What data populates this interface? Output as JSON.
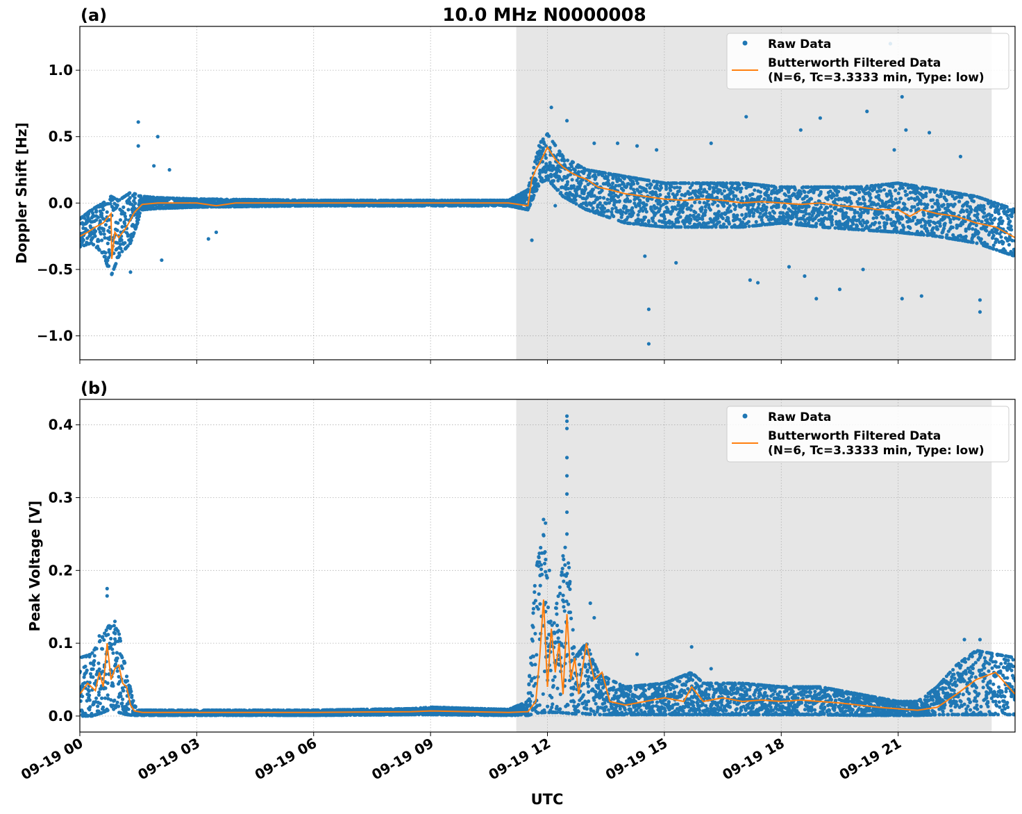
{
  "figure": {
    "title": "10.0 MHz N0000008",
    "xlabel": "UTC",
    "xticks": [
      "09-19 00",
      "09-19 03",
      "09-19 06",
      "09-19 09",
      "09-19 12",
      "09-19 15",
      "09-19 18",
      "09-19 21"
    ]
  },
  "colors": {
    "raw": "#1f77b4",
    "filtered": "#ff7f0e",
    "shade": "#e6e6e6",
    "grid": "#b0b0b0"
  },
  "legend": {
    "raw_label": "Raw Data",
    "filtered_label_1": "Butterworth Filtered Data",
    "filtered_label_2": "(N=6, Tc=3.3333 min, Type: low)"
  },
  "chart_data": [
    {
      "type": "scatter",
      "panel_label": "(a)",
      "ylabel": "Doppler Shift [Hz]",
      "x_unit": "hours UTC on 09-19",
      "xlim": [
        0,
        24
      ],
      "ylim": [
        -1.18,
        1.33
      ],
      "yticks": [
        1.0,
        0.5,
        0.0,
        -0.5,
        -1.0
      ],
      "ytick_labels": [
        "1.0",
        "0.5",
        "0.0",
        "−1.0"
      ],
      "ytick_labels_full": [
        "1.0",
        "0.5",
        "0.0",
        "−0.5",
        "−1.0"
      ],
      "shaded_range": [
        11.2,
        23.4
      ],
      "legend_position": "top-right",
      "series": [
        {
          "name": "Raw Data",
          "style": "points",
          "envelope": {
            "x": [
              0,
              0.3,
              0.6,
              0.8,
              1.0,
              1.3,
              1.6,
              2.0,
              3.0,
              6.0,
              9.0,
              11.0,
              11.5,
              11.8,
              12.0,
              12.4,
              13.0,
              14.0,
              15.0,
              16.0,
              17.0,
              18.0,
              19.0,
              20.0,
              21.0,
              22.0,
              23.0,
              24.0
            ],
            "low": [
              -0.33,
              -0.3,
              -0.38,
              -0.55,
              -0.4,
              -0.3,
              -0.05,
              -0.04,
              -0.03,
              -0.02,
              -0.02,
              -0.02,
              -0.05,
              0.15,
              0.18,
              0.05,
              -0.05,
              -0.15,
              -0.18,
              -0.18,
              -0.18,
              -0.15,
              -0.18,
              -0.2,
              -0.22,
              -0.25,
              -0.3,
              -0.4
            ],
            "high": [
              -0.12,
              -0.05,
              0.0,
              0.05,
              0.02,
              0.08,
              0.05,
              0.04,
              0.03,
              0.02,
              0.02,
              0.02,
              0.1,
              0.45,
              0.52,
              0.35,
              0.25,
              0.2,
              0.15,
              0.15,
              0.15,
              0.12,
              0.12,
              0.12,
              0.15,
              0.1,
              0.05,
              -0.05
            ]
          },
          "outliers": [
            [
              1.5,
              0.61
            ],
            [
              2.0,
              0.5
            ],
            [
              1.5,
              0.43
            ],
            [
              1.9,
              0.28
            ],
            [
              2.3,
              0.25
            ],
            [
              1.3,
              -0.52
            ],
            [
              2.1,
              -0.43
            ],
            [
              3.3,
              -0.27
            ],
            [
              3.5,
              -0.22
            ],
            [
              12.1,
              0.72
            ],
            [
              12.5,
              0.62
            ],
            [
              12.2,
              -0.02
            ],
            [
              11.6,
              -0.28
            ],
            [
              13.2,
              0.45
            ],
            [
              13.8,
              0.45
            ],
            [
              14.3,
              0.43
            ],
            [
              14.5,
              -0.4
            ],
            [
              14.6,
              -0.8
            ],
            [
              14.6,
              -1.06
            ],
            [
              14.8,
              0.4
            ],
            [
              15.3,
              -0.45
            ],
            [
              16.2,
              0.45
            ],
            [
              17.1,
              0.65
            ],
            [
              17.2,
              -0.58
            ],
            [
              17.4,
              -0.6
            ],
            [
              18.2,
              -0.48
            ],
            [
              18.5,
              0.55
            ],
            [
              18.6,
              -0.55
            ],
            [
              18.9,
              -0.72
            ],
            [
              19.0,
              0.64
            ],
            [
              19.5,
              -0.65
            ],
            [
              20.1,
              -0.5
            ],
            [
              20.2,
              0.69
            ],
            [
              20.8,
              1.2
            ],
            [
              20.9,
              0.4
            ],
            [
              21.1,
              0.8
            ],
            [
              21.2,
              0.55
            ],
            [
              21.1,
              -0.72
            ],
            [
              21.6,
              -0.7
            ],
            [
              21.8,
              0.53
            ],
            [
              22.6,
              0.35
            ],
            [
              23.1,
              -0.73
            ],
            [
              23.1,
              -0.82
            ]
          ]
        },
        {
          "name": "Butterworth Filtered Data",
          "style": "line",
          "x": [
            0,
            0.2,
            0.4,
            0.6,
            0.8,
            0.82,
            0.9,
            1.0,
            1.2,
            1.4,
            1.6,
            2.0,
            2.5,
            3.0,
            3.5,
            4.0,
            6.0,
            9.0,
            11.0,
            11.5,
            11.6,
            11.7,
            11.8,
            12.0,
            12.2,
            12.4,
            12.6,
            12.8,
            13.0,
            13.3,
            13.6,
            14.0,
            14.5,
            15.0,
            15.5,
            16.0,
            16.5,
            17.0,
            17.5,
            18.0,
            18.5,
            19.0,
            19.5,
            20.0,
            20.5,
            21.0,
            21.3,
            21.6,
            22.0,
            22.5,
            23.0,
            23.5,
            24.0
          ],
          "y": [
            -0.25,
            -0.22,
            -0.18,
            -0.15,
            -0.08,
            -0.42,
            -0.22,
            -0.26,
            -0.18,
            -0.07,
            -0.01,
            0.0,
            0.0,
            0.0,
            -0.02,
            0.0,
            0.0,
            0.0,
            0.0,
            -0.02,
            0.18,
            0.25,
            0.3,
            0.42,
            0.33,
            0.27,
            0.23,
            0.2,
            0.18,
            0.12,
            0.1,
            0.07,
            0.05,
            0.03,
            0.02,
            0.03,
            0.02,
            0.0,
            0.01,
            0.0,
            -0.01,
            0.0,
            -0.02,
            -0.03,
            -0.05,
            -0.05,
            -0.1,
            -0.05,
            -0.08,
            -0.1,
            -0.15,
            -0.18,
            -0.26
          ]
        }
      ]
    },
    {
      "type": "scatter",
      "panel_label": "(b)",
      "ylabel": "Peak Voltage [V]",
      "x_unit": "hours UTC on 09-19",
      "xlim": [
        0,
        24
      ],
      "ylim": [
        -0.022,
        0.435
      ],
      "yticks": [
        0.0,
        0.1,
        0.2,
        0.3,
        0.4
      ],
      "ytick_labels_full": [
        "0.0",
        "0.1",
        "0.2",
        "0.3",
        "0.4"
      ],
      "shaded_range": [
        11.2,
        23.4
      ],
      "legend_position": "top-right",
      "series": [
        {
          "name": "Raw Data",
          "style": "points",
          "envelope": {
            "x": [
              0,
              0.3,
              0.6,
              0.8,
              1.0,
              1.2,
              1.4,
              1.5,
              3.0,
              6.0,
              8.5,
              9.0,
              11.0,
              11.5,
              11.7,
              11.9,
              12.1,
              12.3,
              12.5,
              12.7,
              13.0,
              13.3,
              13.6,
              14.0,
              15.0,
              15.7,
              16.0,
              17.0,
              18.0,
              19.0,
              20.0,
              20.5,
              21.0,
              21.5,
              22.0,
              22.5,
              23.0,
              24.0
            ],
            "low": [
              0.0,
              0.0,
              0.005,
              0.01,
              0.005,
              0.002,
              0.001,
              0.001,
              0.001,
              0.001,
              0.002,
              0.002,
              0.001,
              0.001,
              0.004,
              0.005,
              0.005,
              0.005,
              0.004,
              0.003,
              0.003,
              0.002,
              0.002,
              0.002,
              0.002,
              0.002,
              0.002,
              0.002,
              0.002,
              0.002,
              0.001,
              0.001,
              0.001,
              0.001,
              0.002,
              0.002,
              0.002,
              0.002
            ],
            "high": [
              0.08,
              0.085,
              0.11,
              0.13,
              0.115,
              0.06,
              0.015,
              0.008,
              0.008,
              0.008,
              0.01,
              0.012,
              0.009,
              0.02,
              0.2,
              0.25,
              0.12,
              0.17,
              0.25,
              0.08,
              0.1,
              0.06,
              0.05,
              0.04,
              0.045,
              0.06,
              0.045,
              0.045,
              0.04,
              0.04,
              0.03,
              0.025,
              0.02,
              0.02,
              0.04,
              0.07,
              0.09,
              0.08
            ]
          },
          "outliers": [
            [
              0.7,
              0.175
            ],
            [
              0.7,
              0.165
            ],
            [
              0.9,
              0.13
            ],
            [
              0.5,
              0.11
            ],
            [
              11.9,
              0.27
            ],
            [
              11.95,
              0.265
            ],
            [
              12.05,
              0.2
            ],
            [
              12.5,
              0.412
            ],
            [
              12.5,
              0.405
            ],
            [
              12.5,
              0.395
            ],
            [
              12.5,
              0.355
            ],
            [
              12.5,
              0.33
            ],
            [
              12.5,
              0.305
            ],
            [
              12.5,
              0.28
            ],
            [
              12.5,
              0.25
            ],
            [
              12.4,
              0.22
            ],
            [
              13.1,
              0.155
            ],
            [
              13.2,
              0.135
            ],
            [
              14.3,
              0.085
            ],
            [
              15.7,
              0.095
            ],
            [
              16.2,
              0.065
            ],
            [
              22.7,
              0.105
            ],
            [
              23.1,
              0.105
            ]
          ]
        },
        {
          "name": "Butterworth Filtered Data",
          "style": "line",
          "x": [
            0,
            0.2,
            0.4,
            0.5,
            0.6,
            0.7,
            0.8,
            0.9,
            1.0,
            1.1,
            1.2,
            1.3,
            1.4,
            1.6,
            3.0,
            6.0,
            8.5,
            9.0,
            10.0,
            11.0,
            11.5,
            11.7,
            11.8,
            11.9,
            12.0,
            12.1,
            12.2,
            12.3,
            12.4,
            12.5,
            12.6,
            12.7,
            12.8,
            13.0,
            13.2,
            13.4,
            13.6,
            14.0,
            14.5,
            15.0,
            15.5,
            15.7,
            16.0,
            16.5,
            17.0,
            17.5,
            18.0,
            18.5,
            19.0,
            19.5,
            20.0,
            20.5,
            21.0,
            21.5,
            22.0,
            22.5,
            23.0,
            23.5,
            24.0
          ],
          "y": [
            0.03,
            0.045,
            0.035,
            0.06,
            0.04,
            0.1,
            0.05,
            0.065,
            0.07,
            0.045,
            0.04,
            0.015,
            0.007,
            0.005,
            0.005,
            0.005,
            0.006,
            0.007,
            0.006,
            0.005,
            0.006,
            0.02,
            0.08,
            0.16,
            0.04,
            0.12,
            0.06,
            0.1,
            0.03,
            0.14,
            0.05,
            0.08,
            0.03,
            0.1,
            0.05,
            0.06,
            0.02,
            0.015,
            0.02,
            0.025,
            0.02,
            0.04,
            0.02,
            0.025,
            0.02,
            0.022,
            0.02,
            0.022,
            0.02,
            0.018,
            0.015,
            0.012,
            0.01,
            0.008,
            0.012,
            0.03,
            0.05,
            0.06,
            0.03
          ]
        }
      ]
    }
  ]
}
